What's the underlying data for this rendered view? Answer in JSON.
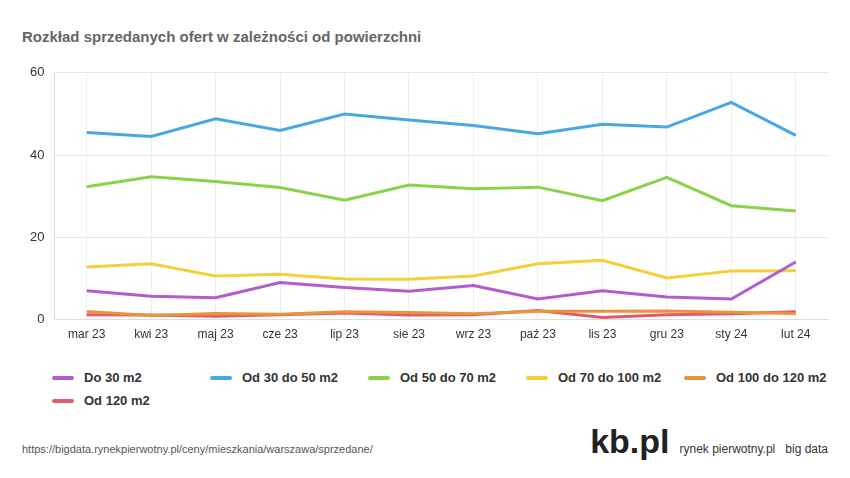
{
  "chart_data": {
    "type": "line",
    "title": "Rozkład sprzedanych ofert w zależności od powierzchni",
    "categories": [
      "mar 23",
      "kwi 23",
      "maj 23",
      "cze 23",
      "lip 23",
      "sie 23",
      "wrz 23",
      "paź 23",
      "lis 23",
      "gru 23",
      "sty 24",
      "lut 24"
    ],
    "series": [
      {
        "name": "Do 30 m2",
        "color": "#b45ccc",
        "values": [
          7,
          5.7,
          5.3,
          9,
          7.8,
          6.9,
          8.3,
          5,
          7,
          5.5,
          5,
          14
        ]
      },
      {
        "name": "Od 30 do 50 m2",
        "color": "#4aa8e0",
        "values": [
          45.5,
          44.5,
          48.8,
          46,
          50,
          48.5,
          47.2,
          45.2,
          47.5,
          46.8,
          52.8,
          44.8
        ]
      },
      {
        "name": "Od 50 do 70 m2",
        "color": "#8bd24a",
        "values": [
          32.3,
          34.7,
          33.6,
          32.1,
          29,
          32.7,
          31.8,
          32.2,
          28.9,
          34.6,
          27.7,
          26.4
        ]
      },
      {
        "name": "Od 70 do 100 m2",
        "color": "#f5cf3a",
        "values": [
          12.8,
          13.6,
          10.6,
          11,
          9.9,
          9.8,
          10.6,
          13.6,
          14.4,
          10.1,
          11.8,
          11.9
        ]
      },
      {
        "name": "Od 100 do 120 m2",
        "color": "#e8943a",
        "values": [
          2,
          1,
          1.5,
          1.3,
          1.9,
          1.7,
          1.4,
          2,
          2,
          2.1,
          1.8,
          1.5
        ]
      },
      {
        "name": "Od 120 m2",
        "color": "#e35a6e",
        "values": [
          1.2,
          1.1,
          0.8,
          1.2,
          1.6,
          1.1,
          1.2,
          2.2,
          0.5,
          1.2,
          1.4,
          1.9
        ]
      }
    ],
    "ylim": [
      0,
      60
    ],
    "yticks": [
      0,
      20,
      40,
      60
    ],
    "grid": true,
    "legend": "bottom",
    "source": "https://bigdata.rynekpierwotny.pl/ceny/mieszkania/warszawa/sprzedane/",
    "logo": [
      "kb.pl",
      "rynek pierwotny.pl",
      "big data"
    ]
  }
}
